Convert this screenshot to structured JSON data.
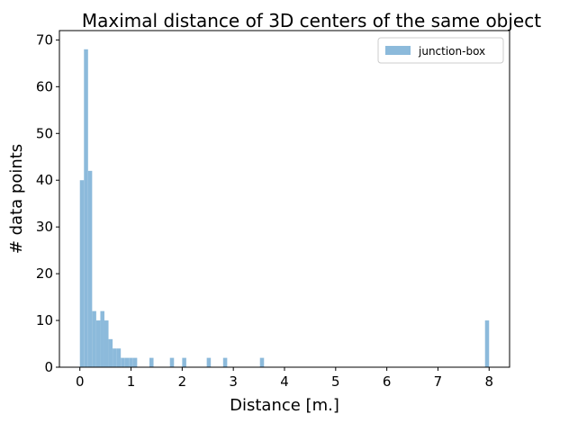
{
  "chart_data": {
    "type": "bar",
    "title": "Maximal distance of 3D centers of the same object",
    "xlabel": "Distance [m.]",
    "ylabel": "# data points",
    "xlim": [
      -0.4,
      8.4
    ],
    "ylim": [
      0,
      72
    ],
    "xticks": [
      0,
      1,
      2,
      3,
      4,
      5,
      6,
      7,
      8
    ],
    "yticks": [
      0,
      10,
      20,
      30,
      40,
      50,
      60,
      70
    ],
    "grid": false,
    "legend_position": "top-right",
    "bin_width": 0.0797,
    "series": [
      {
        "name": "junction-box",
        "color": "#8cbadb",
        "bin_starts": [
          0.0,
          0.08,
          0.16,
          0.24,
          0.32,
          0.4,
          0.48,
          0.56,
          0.64,
          0.72,
          0.8,
          0.88,
          0.96,
          1.04,
          1.12,
          1.36,
          1.76,
          2.0,
          2.48,
          2.8,
          3.52,
          7.92
        ],
        "counts": [
          40,
          68,
          42,
          12,
          10,
          12,
          10,
          6,
          4,
          4,
          2,
          2,
          2,
          2,
          0,
          2,
          2,
          2,
          2,
          2,
          2,
          10
        ]
      }
    ]
  }
}
